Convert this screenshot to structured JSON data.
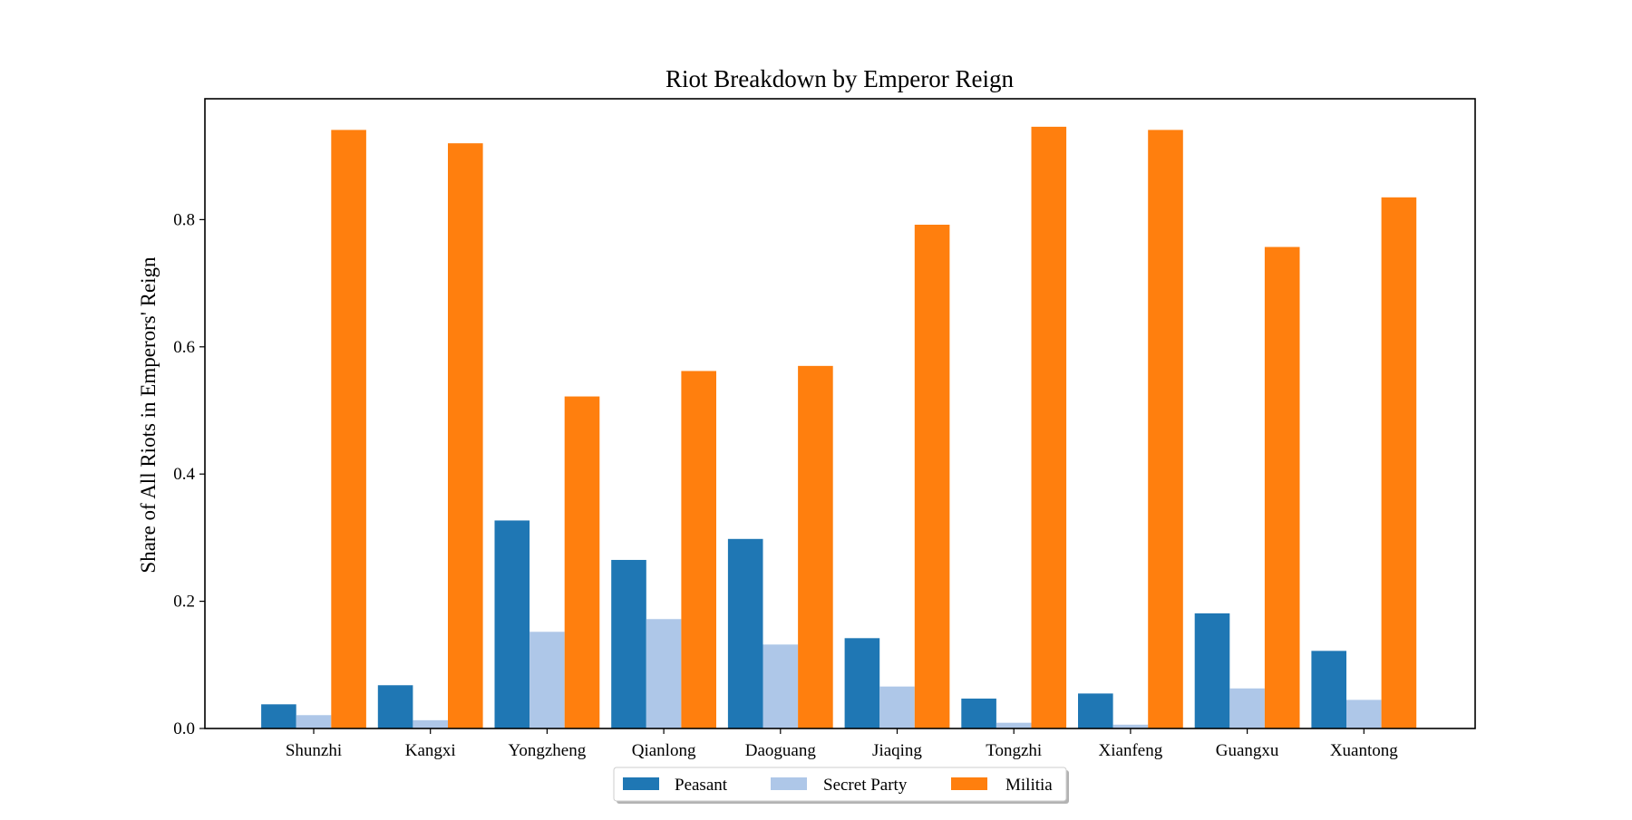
{
  "chart_data": {
    "type": "bar",
    "title": "Riot Breakdown by Emperor Reign",
    "xlabel": "",
    "ylabel": "Share of All Riots in Emperors' Reign",
    "ylim": [
      0,
      0.99
    ],
    "yticks": [
      0.0,
      0.2,
      0.4,
      0.6,
      0.8
    ],
    "ytick_labels": [
      "0.0",
      "0.2",
      "0.4",
      "0.6",
      "0.8"
    ],
    "categories": [
      "Shunzhi",
      "Kangxi",
      "Yongzheng",
      "Qianlong",
      "Daoguang",
      "Jiaqing",
      "Tongzhi",
      "Xianfeng",
      "Guangxu",
      "Xuantong"
    ],
    "series": [
      {
        "name": "Peasant",
        "color": "#1f77b4",
        "values": [
          0.038,
          0.068,
          0.327,
          0.265,
          0.298,
          0.142,
          0.047,
          0.055,
          0.181,
          0.122
        ]
      },
      {
        "name": "Secret Party",
        "color": "#aec7e8",
        "values": [
          0.021,
          0.013,
          0.152,
          0.172,
          0.132,
          0.066,
          0.009,
          0.006,
          0.063,
          0.045
        ]
      },
      {
        "name": "Militia",
        "color": "#ff7f0e",
        "values": [
          0.941,
          0.92,
          0.522,
          0.562,
          0.57,
          0.792,
          0.946,
          0.941,
          0.757,
          0.835
        ]
      }
    ],
    "legend_position": "bottom-center",
    "grid": false
  }
}
